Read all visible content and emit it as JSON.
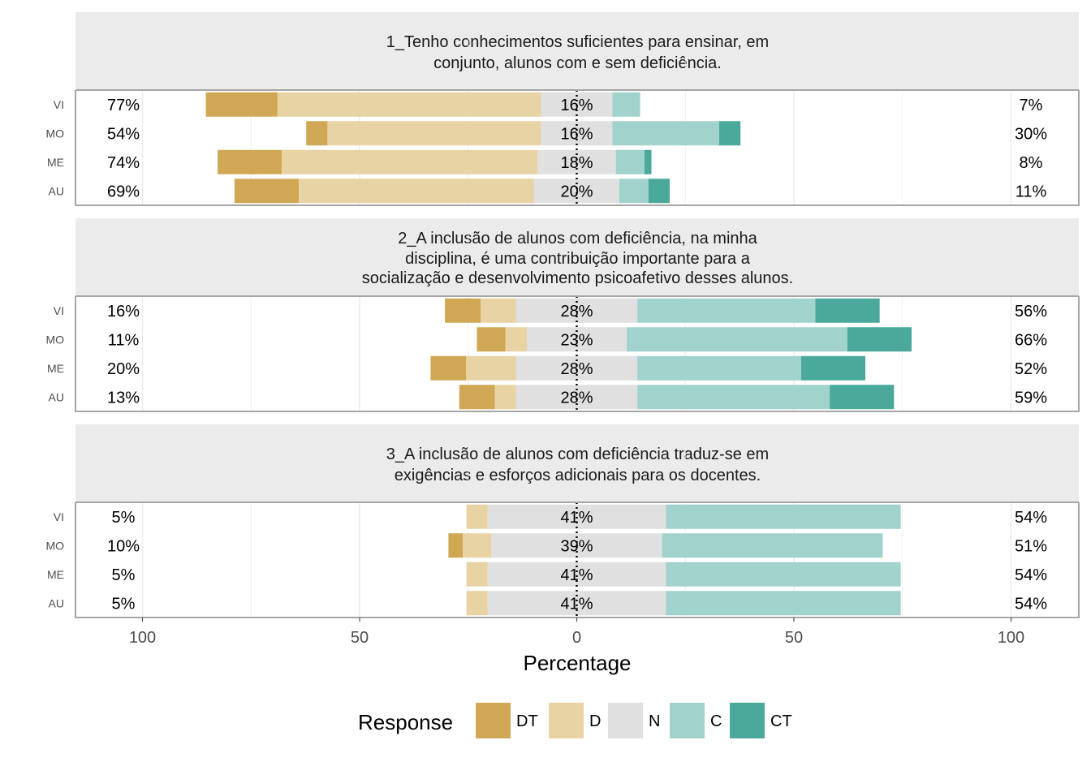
{
  "chart_data": {
    "type": "bar",
    "subtype": "diverging-stacked-likert",
    "xlabel": "Percentage",
    "xlim": [
      -100,
      100
    ],
    "x_ticks": [
      -100,
      -50,
      0,
      50,
      100
    ],
    "x_tick_labels": [
      "100",
      "50",
      "0",
      "50",
      "100"
    ],
    "legend": {
      "title": "Response",
      "position": "bottom",
      "levels": [
        "DT",
        "D",
        "N",
        "C",
        "CT"
      ],
      "colors": [
        "#D0A855",
        "#E8D3A4",
        "#E0E0E0",
        "#A1D3CC",
        "#4BA99C"
      ]
    },
    "panels": [
      {
        "title": "1_Tenho conhecimentos suficientes para ensinar, em conjunto, alunos com e sem deficiência.",
        "title_lines": [
          "1_Tenho conhecimentos suficientes para ensinar, em",
          "conjunto, alunos com e sem deficiência."
        ],
        "rows": [
          {
            "label": "VI",
            "values": [
              16.5,
              60.7,
              16.4,
              6.4,
              0.0
            ],
            "left_label": "77%",
            "neutral_label": "16%",
            "right_label": "7%"
          },
          {
            "label": "MO",
            "values": [
              4.9,
              49.2,
              16.4,
              24.6,
              4.9
            ],
            "left_label": "54%",
            "neutral_label": "16%",
            "right_label": "30%"
          },
          {
            "label": "ME",
            "values": [
              14.8,
              58.9,
              18.0,
              6.6,
              1.6
            ],
            "left_label": "74%",
            "neutral_label": "18%",
            "right_label": "8%"
          },
          {
            "label": "AU",
            "values": [
              14.8,
              54.2,
              19.6,
              6.7,
              4.9
            ],
            "left_label": "69%",
            "neutral_label": "20%",
            "right_label": "11%"
          }
        ]
      },
      {
        "title": "2_A inclusão de alunos com deficiência, na minha disciplina, é uma contribuição importante para a socialização e desenvolvimento psicoafetivo desses alunos.",
        "title_lines": [
          "2_A inclusão de alunos com deficiência, na minha",
          "disciplina, é uma contribuição importante para a",
          "socialização e desenvolvimento psicoafetivo desses alunos."
        ],
        "rows": [
          {
            "label": "VI",
            "values": [
              8.2,
              8.2,
              27.9,
              41.0,
              14.8
            ],
            "left_label": "16%",
            "neutral_label": "28%",
            "right_label": "56%"
          },
          {
            "label": "MO",
            "values": [
              6.6,
              4.9,
              23.0,
              50.8,
              14.8
            ],
            "left_label": "11%",
            "neutral_label": "23%",
            "right_label": "66%"
          },
          {
            "label": "ME",
            "values": [
              8.2,
              11.5,
              27.9,
              37.7,
              14.8
            ],
            "left_label": "20%",
            "neutral_label": "28%",
            "right_label": "52%"
          },
          {
            "label": "AU",
            "values": [
              8.2,
              4.9,
              27.9,
              44.3,
              14.8
            ],
            "left_label": "13%",
            "neutral_label": "28%",
            "right_label": "59%"
          }
        ]
      },
      {
        "title": "3_A inclusão de alunos com deficiência traduz-se em exigências e esforços adicionais para os docentes.",
        "title_lines": [
          "3_A inclusão de alunos com deficiência traduz-se em",
          "exigências e esforços adicionais para os docentes."
        ],
        "rows": [
          {
            "label": "VI",
            "values": [
              0.0,
              4.9,
              41.0,
              54.1,
              0.0
            ],
            "left_label": "5%",
            "neutral_label": "41%",
            "right_label": "54%"
          },
          {
            "label": "MO",
            "values": [
              3.3,
              6.6,
              39.3,
              50.8,
              0.0
            ],
            "left_label": "10%",
            "neutral_label": "39%",
            "right_label": "51%"
          },
          {
            "label": "ME",
            "values": [
              0.0,
              4.9,
              41.0,
              54.1,
              0.0
            ],
            "left_label": "5%",
            "neutral_label": "41%",
            "right_label": "54%"
          },
          {
            "label": "AU",
            "values": [
              0.0,
              4.9,
              41.0,
              54.1,
              0.0
            ],
            "left_label": "5%",
            "neutral_label": "41%",
            "right_label": "54%"
          }
        ]
      }
    ]
  }
}
